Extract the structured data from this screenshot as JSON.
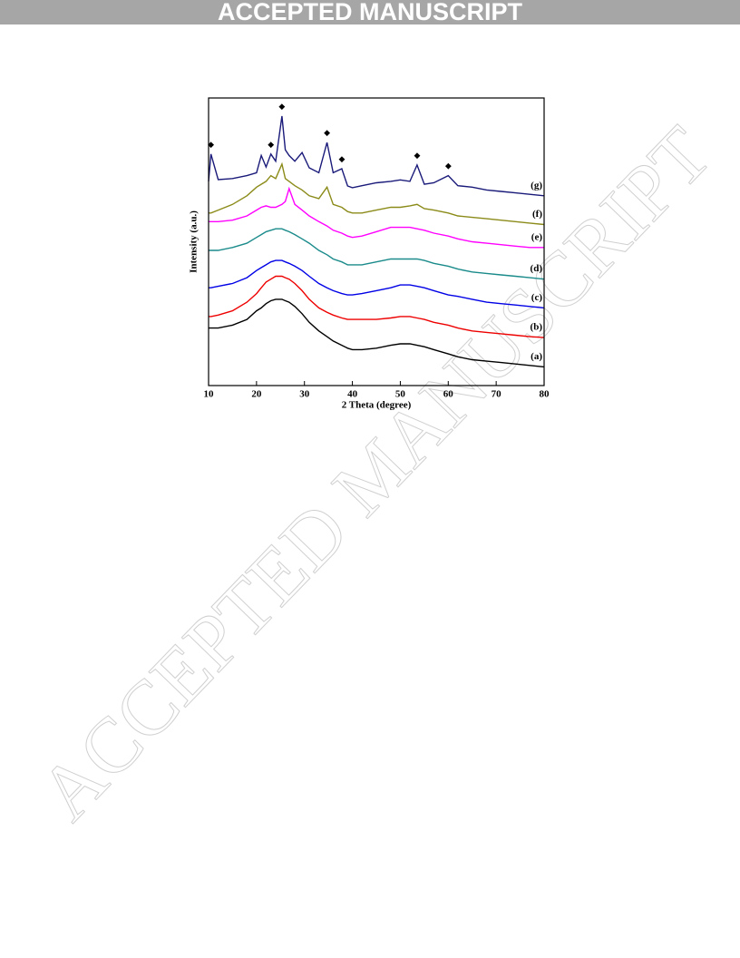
{
  "header": {
    "title": "ACCEPTED MANUSCRIPT"
  },
  "watermark": "ACCEPTED MANUSCRIPT",
  "chart_data": {
    "type": "line",
    "xlabel": "2 Theta (degree)",
    "ylabel": "Intensity (a.u.)",
    "xlim": [
      10,
      80
    ],
    "xticks": [
      10,
      20,
      30,
      40,
      50,
      60,
      70,
      80
    ],
    "ylim": [
      0,
      100
    ],
    "x": [
      10,
      10.5,
      12,
      15,
      18,
      20,
      21,
      22,
      23,
      24,
      25.3,
      26,
      26.8,
      28,
      29.5,
      31,
      33,
      34.7,
      36,
      37.8,
      39,
      40,
      42,
      45,
      48,
      50,
      52,
      53.5,
      55,
      57,
      60,
      62,
      65,
      68,
      71,
      74,
      77,
      80
    ],
    "series": [
      {
        "name": "(a)",
        "color": "#000000",
        "values": [
          20,
          20,
          20,
          21,
          23,
          26,
          27,
          28.5,
          29.5,
          30,
          30,
          29.5,
          29,
          27.5,
          25,
          22,
          19,
          17,
          15.5,
          14,
          13,
          12.5,
          12.5,
          13,
          14,
          14.5,
          14.5,
          14,
          13.5,
          12.5,
          11,
          10,
          9,
          8.5,
          8,
          7.5,
          7,
          6.5
        ]
      },
      {
        "name": "(b)",
        "color": "#ee0000",
        "values": [
          24,
          24,
          24.5,
          26,
          29,
          32,
          34,
          36,
          37,
          38,
          38,
          37.5,
          37,
          35.5,
          33,
          30,
          27,
          25.5,
          24.5,
          23.5,
          23,
          23,
          23,
          23,
          23.5,
          24,
          24,
          23.5,
          23,
          22,
          21,
          20,
          19,
          18.5,
          18,
          17.5,
          17,
          16.7
        ]
      },
      {
        "name": "(c)",
        "color": "#0000e6",
        "values": [
          34,
          34,
          34.5,
          35.5,
          37.5,
          40,
          41,
          42,
          43,
          43.5,
          43.5,
          43,
          42.5,
          41.5,
          40,
          38,
          35.5,
          34,
          33,
          32,
          31.5,
          31.5,
          32,
          33,
          34,
          35,
          35,
          34.5,
          34,
          33,
          31.5,
          31,
          30,
          29,
          28.5,
          28,
          27.5,
          27
        ]
      },
      {
        "name": "(d)",
        "color": "#1a8a8a",
        "values": [
          47,
          47,
          47,
          48,
          49.5,
          51.5,
          52.5,
          53.5,
          54,
          54.5,
          54.5,
          54,
          53.5,
          52.5,
          51,
          49.5,
          47,
          45.5,
          44,
          43,
          42,
          42,
          42,
          43,
          44,
          44,
          44,
          44,
          43.5,
          42.5,
          41.5,
          40.5,
          39.5,
          39,
          38.5,
          38,
          37.5,
          37
        ]
      },
      {
        "name": "(e)",
        "color": "#ff00ff",
        "values": [
          57,
          57,
          57,
          57.5,
          59,
          61,
          62,
          62.5,
          62,
          62,
          63,
          64,
          68.5,
          63,
          61,
          59,
          57,
          55.5,
          54,
          53,
          52,
          51.5,
          52,
          53.5,
          55,
          55,
          55,
          54.5,
          54,
          53,
          52,
          51,
          50,
          49.5,
          49,
          48.5,
          48,
          48
        ]
      },
      {
        "name": "(f)",
        "color": "#8b8b1a",
        "values": [
          60,
          60,
          61,
          63,
          66,
          69,
          70,
          71,
          73,
          72,
          77,
          72,
          71,
          69.5,
          68,
          66,
          65,
          69,
          63,
          62,
          60.5,
          60,
          60,
          61,
          62,
          62,
          62.5,
          63,
          61.5,
          61,
          60,
          59,
          58.5,
          58,
          57.5,
          57,
          56.5,
          56
        ]
      },
      {
        "name": "(g)",
        "color": "#1a1a7a",
        "values": [
          71,
          80.5,
          71.6,
          72,
          73,
          74,
          80,
          76,
          80.5,
          78,
          93.7,
          82,
          80,
          78,
          81,
          75.7,
          74,
          84.5,
          74,
          75.4,
          69.4,
          68.8,
          69.5,
          70.5,
          71,
          71.5,
          71,
          76.7,
          70,
          70.5,
          73,
          69.5,
          69,
          68,
          67.5,
          67,
          66.5,
          66
        ]
      }
    ],
    "peak_marker": "◆",
    "peak_x": [
      10.5,
      23,
      25.3,
      34.7,
      37.8,
      53.5,
      60
    ]
  }
}
